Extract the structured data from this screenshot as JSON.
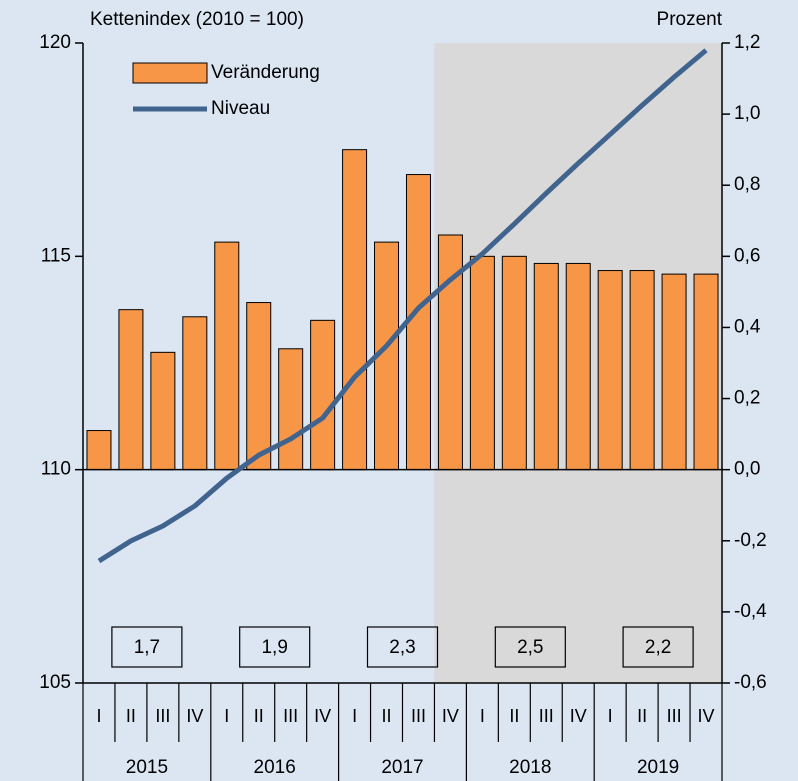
{
  "chart_data": {
    "type": "bar-line",
    "y_label": "Kettenindex (2010 = 100)",
    "y2_label": "Prozent",
    "categories": [
      "I",
      "II",
      "III",
      "IV",
      "I",
      "II",
      "III",
      "IV",
      "I",
      "II",
      "III",
      "IV",
      "I",
      "II",
      "III",
      "IV",
      "I",
      "II",
      "III",
      "IV"
    ],
    "years": [
      "2015",
      "2016",
      "2017",
      "2018",
      "2019"
    ],
    "series": [
      {
        "name": "Veränderung",
        "type": "bar",
        "axis": "y2",
        "color": "#f79646",
        "values": [
          0.11,
          0.45,
          0.33,
          0.43,
          0.64,
          0.47,
          0.34,
          0.42,
          0.9,
          0.64,
          0.83,
          0.66,
          0.6,
          0.6,
          0.58,
          0.58,
          0.56,
          0.56,
          0.55,
          0.55
        ]
      },
      {
        "name": "Niveau",
        "type": "line",
        "axis": "y",
        "color": "#41648f",
        "values": [
          107.86,
          108.33,
          108.68,
          109.15,
          109.8,
          110.34,
          110.72,
          111.21,
          112.17,
          112.9,
          113.79,
          114.45,
          115.06,
          115.76,
          116.48,
          117.18,
          117.86,
          118.54,
          119.2,
          119.83
        ]
      }
    ],
    "annual_growth": {
      "values": [
        1.7,
        1.9,
        2.3,
        2.5,
        2.2
      ],
      "value_labels": [
        "1,7",
        "1,9",
        "2,3",
        "2,5",
        "2,2"
      ]
    },
    "shaded_from_index": 11,
    "ylim": [
      105,
      120
    ],
    "yticks": [
      105,
      110,
      115,
      120
    ],
    "y2lim": [
      -0.6,
      1.2
    ],
    "y2ticks": [
      {
        "value": -0.6,
        "label": "-0,6"
      },
      {
        "value": -0.4,
        "label": "-0,4"
      },
      {
        "value": -0.2,
        "label": "-0,2"
      },
      {
        "value": 0,
        "label": "0,0"
      },
      {
        "value": 0.2,
        "label": "0,2"
      },
      {
        "value": 0.4,
        "label": "0,4"
      },
      {
        "value": 0.6,
        "label": "0,6"
      },
      {
        "value": 0.8,
        "label": "0,8"
      },
      {
        "value": 1.0,
        "label": "1,0"
      },
      {
        "value": 1.2,
        "label": "1,2"
      }
    ],
    "legend": "upper left"
  }
}
